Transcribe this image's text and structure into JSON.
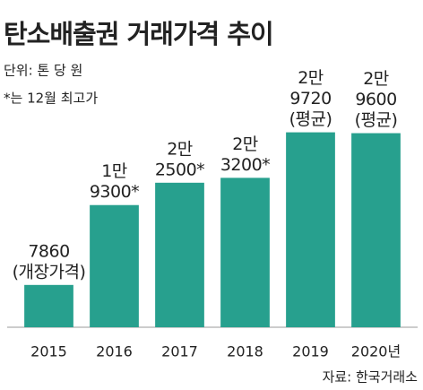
{
  "chart_data": {
    "type": "bar",
    "title": "탄소배출권 거래가격 추이",
    "subtitle": "단위: 톤 당 원",
    "note": "*는 12월 최고가",
    "source": "자료: 한국거래소",
    "categories": [
      "2015",
      "2016",
      "2017",
      "2018",
      "2019",
      "2020년"
    ],
    "values": [
      7860,
      19300,
      22500,
      23200,
      29720,
      29600
    ],
    "value_labels": [
      [
        "7860",
        "(개장가격)"
      ],
      [
        "1만",
        "9300*"
      ],
      [
        "2만",
        "2500*"
      ],
      [
        "2만",
        "3200*"
      ],
      [
        "2만",
        "9720",
        "(평균)"
      ],
      [
        "2만",
        "9600",
        "(평균)"
      ]
    ],
    "color": "#27a08e",
    "ylim": [
      1800,
      38400
    ]
  }
}
